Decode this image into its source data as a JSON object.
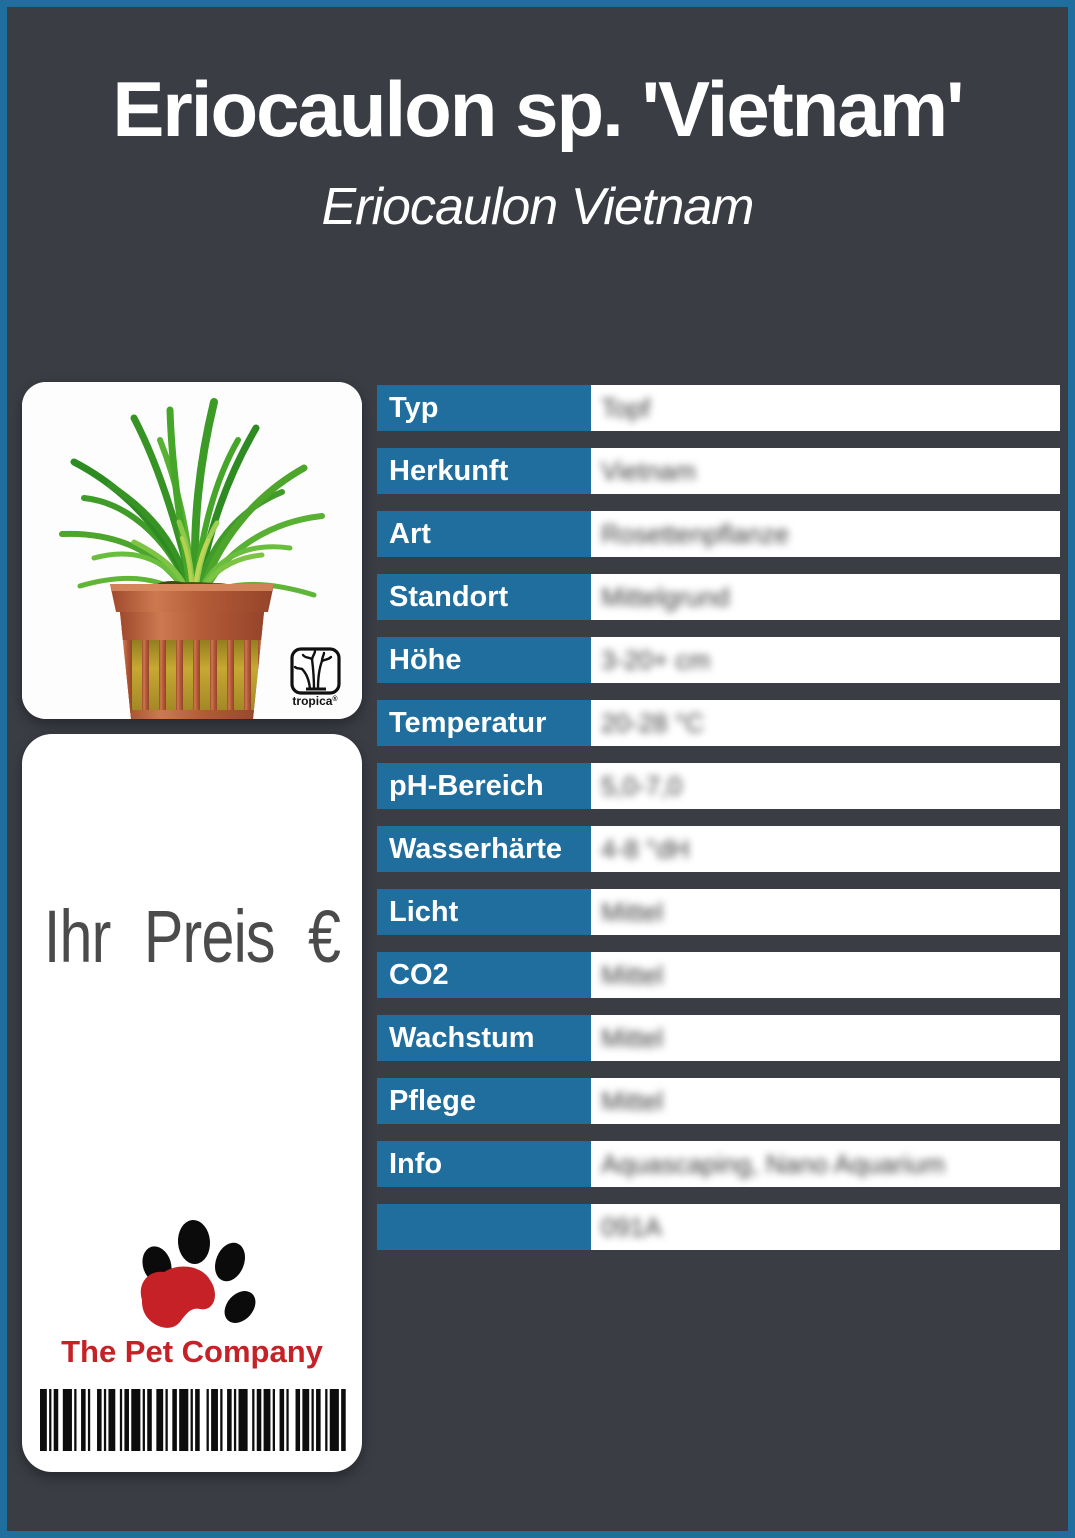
{
  "page": {
    "title": "Eriocaulon sp. 'Vietnam'",
    "subtitle": "Eriocaulon Vietnam"
  },
  "colors": {
    "background": "#3a3d44",
    "accent_blue": "#1f6e9e",
    "brand_red": "#c62127",
    "price_text_gray": "#4b4b4b"
  },
  "plant_card": {
    "photo_icon": "plant-in-pot-photo",
    "brand_logo_text": "tropica",
    "brand_logo_registered": "®"
  },
  "price_card": {
    "price_label": "Ihr Preis €",
    "company_name": "The Pet Company",
    "paw_icon": "paw-print-icon",
    "barcode_icon": "barcode"
  },
  "table": {
    "rows": [
      {
        "label": "Typ",
        "value": "Topf"
      },
      {
        "label": "Herkunft",
        "value": "Vietnam"
      },
      {
        "label": "Art",
        "value": "Rosettenpflanze"
      },
      {
        "label": "Standort",
        "value": "Mittelgrund"
      },
      {
        "label": "Höhe",
        "value": "3-20+ cm"
      },
      {
        "label": "Temperatur",
        "value": "20-28 °C"
      },
      {
        "label": "pH-Bereich",
        "value": "5,0-7,0"
      },
      {
        "label": "Wasserhärte",
        "value": "4-8 °dH"
      },
      {
        "label": "Licht",
        "value": "Mittel"
      },
      {
        "label": "CO2",
        "value": "Mittel"
      },
      {
        "label": "Wachstum",
        "value": "Mittel"
      },
      {
        "label": "Pflege",
        "value": "Mittel"
      },
      {
        "label": "Info",
        "value": "Aquascaping, Nano Aquarium"
      },
      {
        "label": "",
        "value": "091A"
      }
    ]
  }
}
